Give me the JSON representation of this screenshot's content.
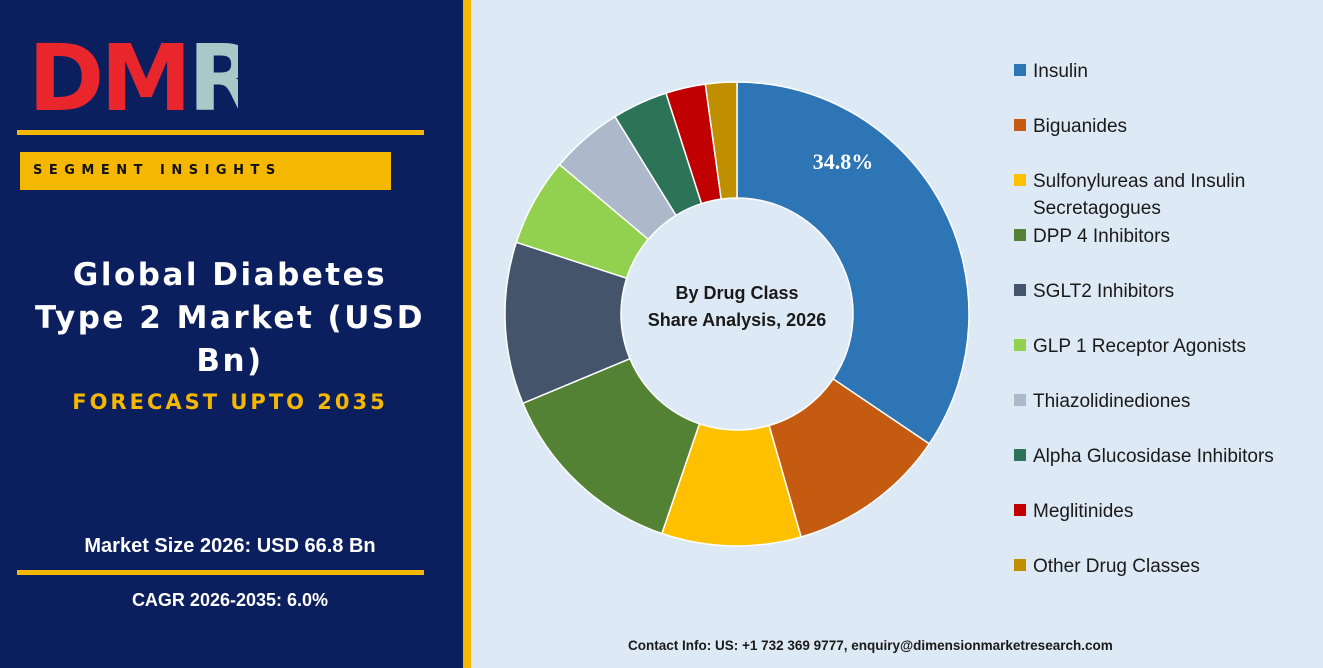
{
  "brand": {
    "logo_text": "DMR"
  },
  "left_panel": {
    "segment_label": "SEGMENT INSIGHTS",
    "title_lines": [
      "Global Diabetes",
      "Type 2 Market (USD",
      "Bn)"
    ],
    "forecast": "FORECAST UPTO 2035",
    "market_size": "Market Size 2026: USD 66.8 Bn",
    "cagr": "CAGR 2026-2035: 6.0%"
  },
  "chart_data": {
    "type": "pie",
    "variant": "donut",
    "title": "By Drug Class Share Analysis, 2026",
    "title_lines": [
      "By Drug Class",
      "Share Analysis, 2026"
    ],
    "categories": [
      "Insulin",
      "Biguanides",
      "Sulfonylureas and Insulin Secretagogues",
      "DPP 4 Inhibitors",
      "SGLT2 Inhibitors",
      "GLP 1 Receptor Agonists",
      "Thiazolidinediones",
      "Alpha Glucosidase Inhibitors",
      "Meglitinides",
      "Other Drug Classes"
    ],
    "values": [
      34.8,
      11.2,
      9.8,
      13.6,
      11.4,
      6.2,
      5.1,
      3.9,
      2.8,
      2.2
    ],
    "colors": [
      "#2e75b6",
      "#c55a11",
      "#ffc000",
      "#548235",
      "#44546a",
      "#92d050",
      "#adb9ca",
      "#2d7358",
      "#c00000",
      "#bf8f00"
    ],
    "data_labels": [
      "34.8%",
      "",
      "",
      "",
      "",
      "",
      "",
      "",
      "",
      ""
    ],
    "legend_position": "right"
  },
  "legend": {
    "items": [
      {
        "label": "Insulin",
        "color": "#2e75b6"
      },
      {
        "label": "Biguanides",
        "color": "#c55a11"
      },
      {
        "label": "Sulfonylureas and Insulin Secretagogues",
        "color": "#ffc000"
      },
      {
        "label": "DPP 4 Inhibitors",
        "color": "#548235"
      },
      {
        "label": "SGLT2 Inhibitors",
        "color": "#44546a"
      },
      {
        "label": "GLP 1 Receptor Agonists",
        "color": "#92d050"
      },
      {
        "label": "Thiazolidinediones",
        "color": "#adb9ca"
      },
      {
        "label": "Alpha Glucosidase Inhibitors",
        "color": "#2d7358"
      },
      {
        "label": "Meglitinides",
        "color": "#c00000"
      },
      {
        "label": "Other Drug Classes",
        "color": "#bf8f00"
      }
    ]
  },
  "footer": {
    "contact": "Contact Info: US: +1 732 369 9777, enquiry@dimensionmarketresearch.com"
  },
  "colors": {
    "navy": "#0b1f5e",
    "gold": "#f5b700",
    "panel": "#dde9f5"
  }
}
